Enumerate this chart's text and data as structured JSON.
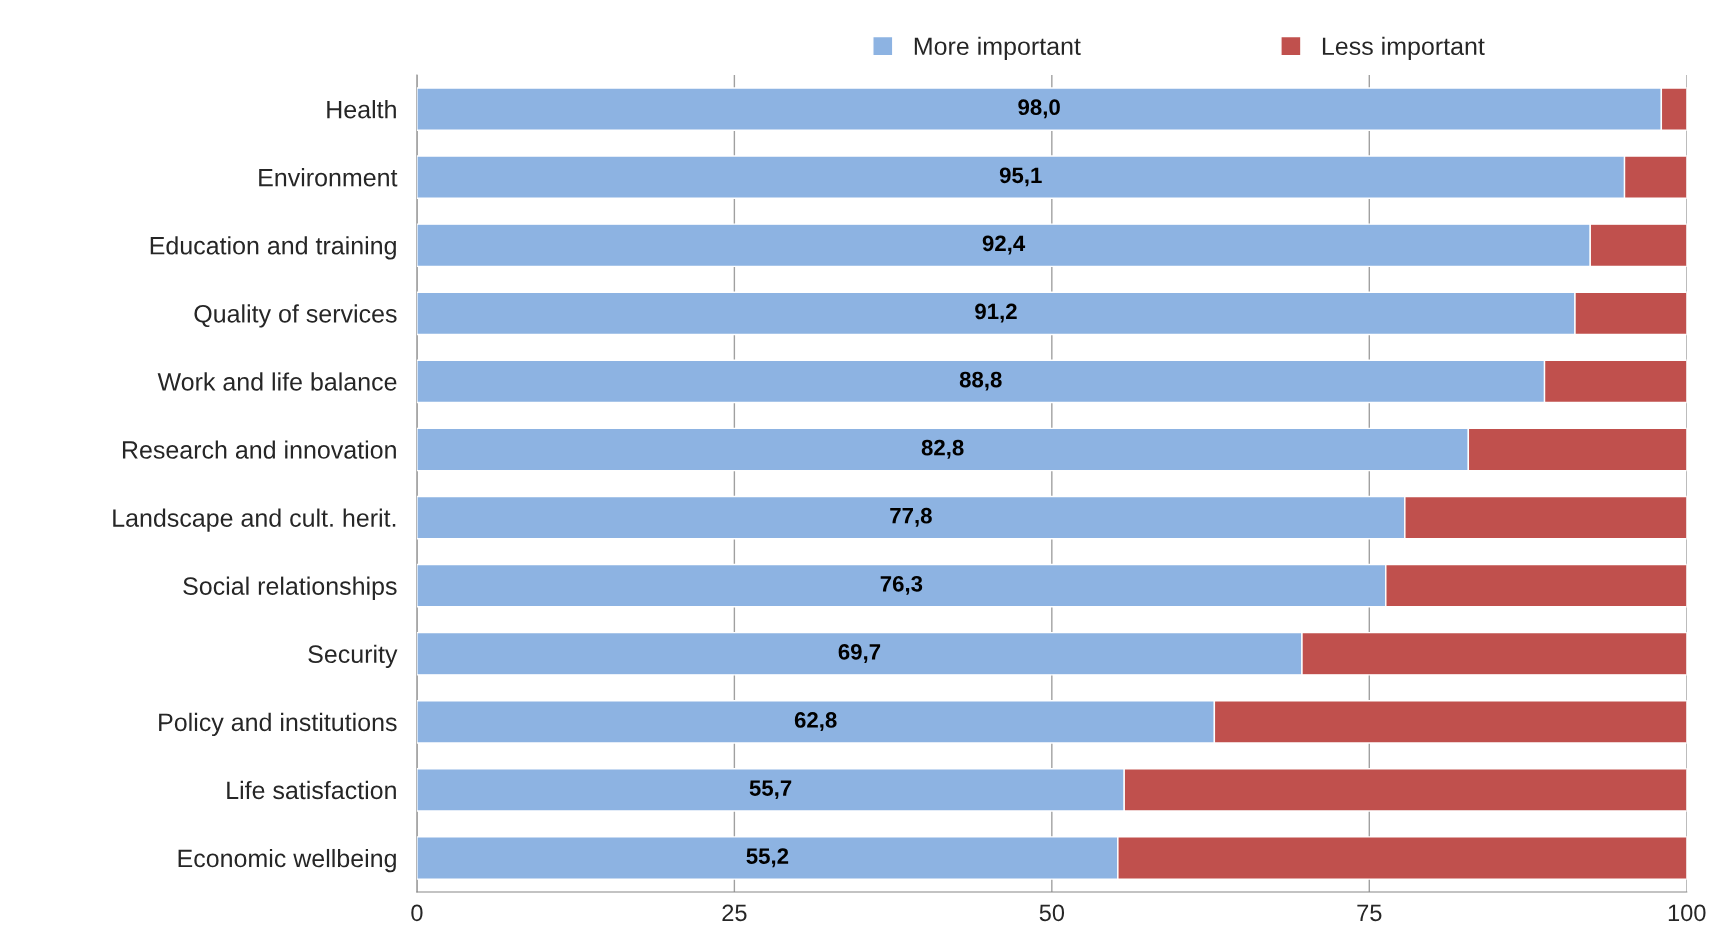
{
  "chart_data": {
    "type": "bar",
    "orientation": "horizontal",
    "stacked": true,
    "categories": [
      "Health",
      "Environment",
      "Education and training",
      "Quality of services",
      "Work and life balance",
      "Research and innovation",
      "Landscape and cult. herit.",
      "Social relationships",
      "Security",
      "Policy and institutions",
      "Life satisfaction",
      "Economic wellbeing"
    ],
    "series": [
      {
        "name": "More important",
        "color": "#8db3e2",
        "values": [
          98.0,
          95.1,
          92.4,
          91.2,
          88.8,
          82.8,
          77.8,
          76.3,
          69.7,
          62.8,
          55.7,
          55.2
        ],
        "value_labels": [
          "98,0",
          "95,1",
          "92,4",
          "91,2",
          "88,8",
          "82,8",
          "77,8",
          "76,3",
          "69,7",
          "62,8",
          "55,7",
          "55,2"
        ]
      },
      {
        "name": "Less important",
        "color": "#c0504d",
        "values": [
          2.0,
          4.9,
          7.6,
          8.8,
          11.2,
          17.2,
          22.2,
          23.7,
          30.3,
          37.2,
          44.3,
          44.8
        ]
      }
    ],
    "xlim": [
      0,
      100
    ],
    "xticks": [
      0,
      25,
      50,
      75,
      100
    ],
    "grid": "x",
    "legend": "top"
  }
}
